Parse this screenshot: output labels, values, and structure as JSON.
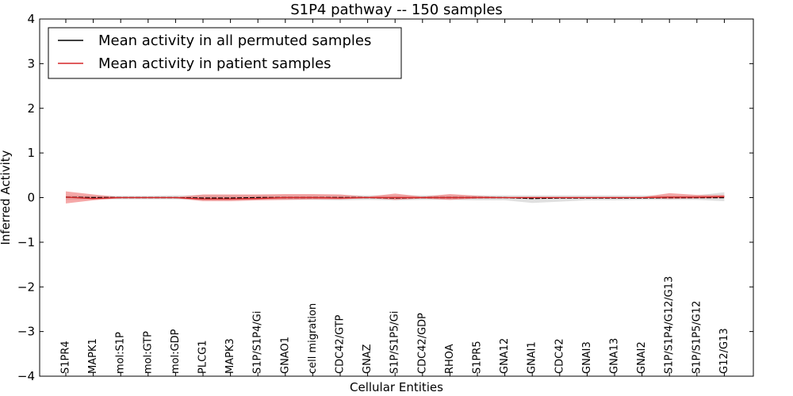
{
  "chart_data": {
    "type": "line",
    "title": "S1P4 pathway -- 150 samples",
    "xlabel": "Cellular Entities",
    "ylabel": "Inferred Activity",
    "ylim": [
      -4,
      4
    ],
    "yticks": [
      -4,
      -3,
      -2,
      -1,
      0,
      1,
      2,
      3,
      4
    ],
    "ytick_labels": [
      "−4",
      "−3",
      "−2",
      "−1",
      "0",
      "1",
      "2",
      "3",
      "4"
    ],
    "categories": [
      "S1PR4",
      "MAPK1",
      "mol:S1P",
      "mol:GTP",
      "mol:GDP",
      "PLCG1",
      "MAPK3",
      "S1P/S1P4/Gi",
      "GNAO1",
      "cell migration",
      "CDC42/GTP",
      "GNAZ",
      "S1P/S1P5/Gi",
      "CDC42/GDP",
      "RHOA",
      "S1PR5",
      "GNA12",
      "GNAI1",
      "CDC42",
      "GNAI3",
      "GNA13",
      "GNAI2",
      "S1P/S1P4/G12/G13",
      "S1P/S1P5/G12",
      "G12/G13"
    ],
    "legend_position": "top-left",
    "series": [
      {
        "name": "Mean activity in all permuted samples",
        "color": "#000000",
        "band_color": "#bbbbbb",
        "values": [
          0.01,
          0.0,
          0.0,
          0.0,
          0.0,
          -0.01,
          -0.01,
          0.0,
          0.0,
          0.0,
          0.0,
          0.0,
          -0.01,
          0.0,
          0.0,
          0.0,
          0.0,
          -0.02,
          -0.01,
          -0.01,
          -0.01,
          -0.01,
          0.0,
          0.0,
          0.0
        ],
        "lower": [
          -0.05,
          -0.04,
          -0.04,
          -0.04,
          -0.04,
          -0.06,
          -0.06,
          -0.05,
          -0.05,
          -0.05,
          -0.06,
          -0.05,
          -0.06,
          -0.05,
          -0.05,
          -0.06,
          -0.06,
          -0.12,
          -0.09,
          -0.06,
          -0.06,
          -0.05,
          -0.05,
          -0.05,
          -0.08
        ],
        "upper": [
          0.05,
          0.04,
          0.04,
          0.04,
          0.05,
          0.05,
          0.05,
          0.05,
          0.05,
          0.05,
          0.05,
          0.05,
          0.05,
          0.05,
          0.05,
          0.05,
          0.05,
          0.05,
          0.05,
          0.05,
          0.05,
          0.05,
          0.05,
          0.05,
          0.12
        ]
      },
      {
        "name": "Mean activity in patient samples",
        "color": "#d62728",
        "band_color": "#ee6e6e",
        "values": [
          0.01,
          -0.02,
          0.0,
          0.0,
          0.0,
          -0.03,
          -0.03,
          -0.02,
          0.0,
          0.0,
          -0.01,
          0.0,
          0.0,
          0.0,
          0.0,
          0.0,
          0.0,
          0.0,
          0.0,
          0.0,
          0.0,
          0.0,
          0.01,
          0.01,
          0.02
        ],
        "lower": [
          -0.13,
          -0.06,
          -0.01,
          -0.01,
          -0.01,
          -0.08,
          -0.08,
          -0.06,
          -0.05,
          -0.04,
          -0.04,
          -0.01,
          -0.05,
          -0.02,
          -0.05,
          -0.02,
          -0.01,
          -0.01,
          -0.01,
          -0.01,
          -0.01,
          -0.01,
          -0.03,
          -0.02,
          -0.01
        ],
        "upper": [
          0.14,
          0.07,
          0.01,
          0.01,
          0.01,
          0.07,
          0.07,
          0.07,
          0.08,
          0.08,
          0.07,
          0.02,
          0.09,
          0.02,
          0.08,
          0.04,
          0.01,
          0.01,
          0.01,
          0.01,
          0.01,
          0.01,
          0.1,
          0.06,
          0.06
        ]
      }
    ]
  }
}
